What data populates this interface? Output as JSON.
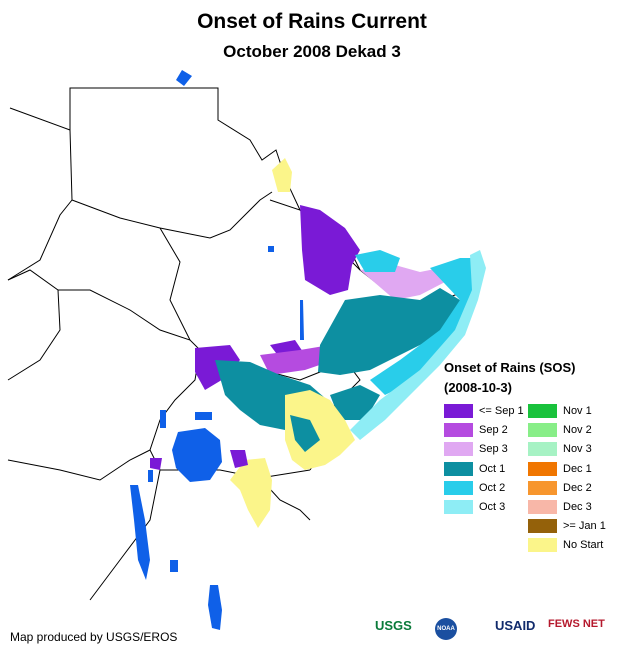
{
  "title": "Onset of Rains Current",
  "subtitle": "October 2008 Dekad 3",
  "legend": {
    "title": "Onset of Rains (SOS)",
    "date": "(2008-10-3)",
    "items": [
      {
        "label": "<= Sep 1",
        "color": "#7a1ad6"
      },
      {
        "label": "Sep 2",
        "color": "#b54be0"
      },
      {
        "label": "Sep 3",
        "color": "#e0a8f2"
      },
      {
        "label": "Oct 1",
        "color": "#0d8fa1"
      },
      {
        "label": "Oct 2",
        "color": "#29cdea"
      },
      {
        "label": "Oct 3",
        "color": "#8eedf5"
      },
      {
        "label": "Nov 1",
        "color": "#19c23c"
      },
      {
        "label": "Nov 2",
        "color": "#88ee88"
      },
      {
        "label": "Nov 3",
        "color": "#a6f2c4"
      },
      {
        "label": "Dec 1",
        "color": "#f07600"
      },
      {
        "label": "Dec 2",
        "color": "#f7962e"
      },
      {
        "label": "Dec 3",
        "color": "#f8b7a8"
      },
      {
        "label": ">= Jan 1",
        "color": "#94610a"
      },
      {
        "label": "No Start",
        "color": "#fbf58a"
      }
    ]
  },
  "credit": "Map produced by USGS/EROS",
  "logos": [
    "USGS",
    "NOAA",
    "USAID",
    "FEWS NET"
  ],
  "colors": {
    "water": "#0f60e8",
    "border": "#000000",
    "land": "#ffffff"
  }
}
